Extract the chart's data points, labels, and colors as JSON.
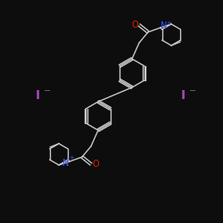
{
  "bg_color": "#0d0d0d",
  "bond_color": "#c8c8c8",
  "atom_colors": {
    "N": "#3355ff",
    "O": "#dd2200",
    "I": "#aa44bb",
    "C": "#c8c8c8"
  },
  "figsize": [
    2.5,
    2.5
  ],
  "dpi": 100
}
